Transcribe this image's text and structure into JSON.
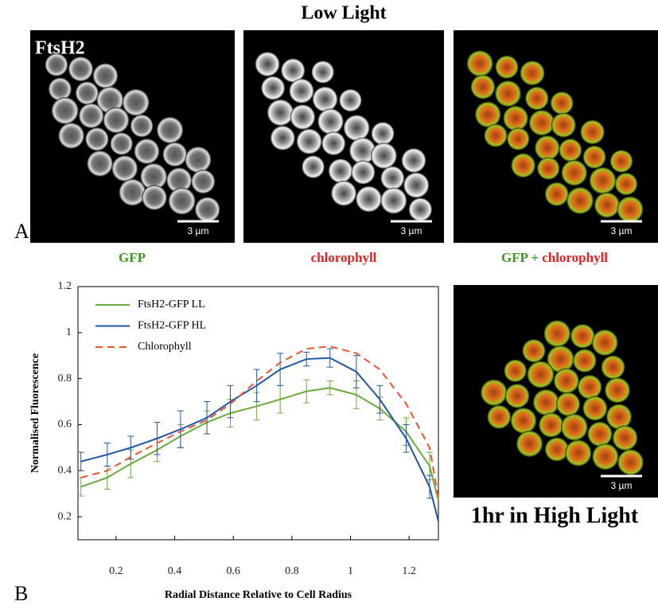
{
  "figure": {
    "title": "Low Light",
    "label_a": "A",
    "label_b": "B",
    "protein": "FtsH2",
    "scale_bar": "3 µm",
    "captions": [
      "GFP",
      "chlorophyll"
    ],
    "plus": "+",
    "high_light_caption": "1hr in High Light"
  },
  "chart_data": {
    "type": "line",
    "xlabel": "Radial Distance Relative to Cell Radius",
    "ylabel": "Normalised Fluorescence",
    "x": [
      0.08,
      0.17,
      0.25,
      0.34,
      0.42,
      0.51,
      0.59,
      0.68,
      0.76,
      0.85,
      0.93,
      1.02,
      1.1,
      1.19,
      1.27,
      1.3
    ],
    "series": [
      {
        "name": "FtsH2-GFP LL",
        "color": "#6aab3a",
        "dash": false,
        "values": [
          0.33,
          0.37,
          0.43,
          0.49,
          0.55,
          0.61,
          0.65,
          0.68,
          0.71,
          0.745,
          0.76,
          0.73,
          0.67,
          0.57,
          0.42,
          0.27
        ],
        "errors": [
          0.04,
          0.05,
          0.06,
          0.05,
          0.05,
          0.05,
          0.06,
          0.06,
          0.06,
          0.05,
          0.03,
          0.06,
          0.05,
          0.06,
          0.06,
          null
        ]
      },
      {
        "name": "FtsH2-GFP HL",
        "color": "#1f58a8",
        "dash": false,
        "values": [
          0.44,
          0.47,
          0.5,
          0.54,
          0.58,
          0.63,
          0.7,
          0.77,
          0.84,
          0.885,
          0.89,
          0.83,
          0.71,
          0.54,
          0.33,
          0.18
        ],
        "errors": [
          0.04,
          0.05,
          0.05,
          0.07,
          0.08,
          0.07,
          0.07,
          0.07,
          0.07,
          0.03,
          0.04,
          0.07,
          0.06,
          0.06,
          0.05,
          null
        ]
      },
      {
        "name": "Chlorophyll",
        "color": "#f0522d",
        "dash": true,
        "values": [
          0.37,
          0.4,
          0.46,
          0.52,
          0.57,
          0.62,
          0.69,
          0.79,
          0.87,
          0.93,
          0.94,
          0.91,
          0.84,
          0.69,
          0.5,
          0.28
        ]
      }
    ],
    "xlim": [
      0.07,
      1.3
    ],
    "xticks": [
      0.2,
      0.4,
      0.6,
      0.8,
      1,
      1.2
    ],
    "ylim": [
      0.1,
      1.2
    ],
    "yticks": [
      0.2,
      0.4,
      0.6,
      0.8,
      1,
      1.2
    ],
    "legend": "upper left",
    "grid": false
  }
}
